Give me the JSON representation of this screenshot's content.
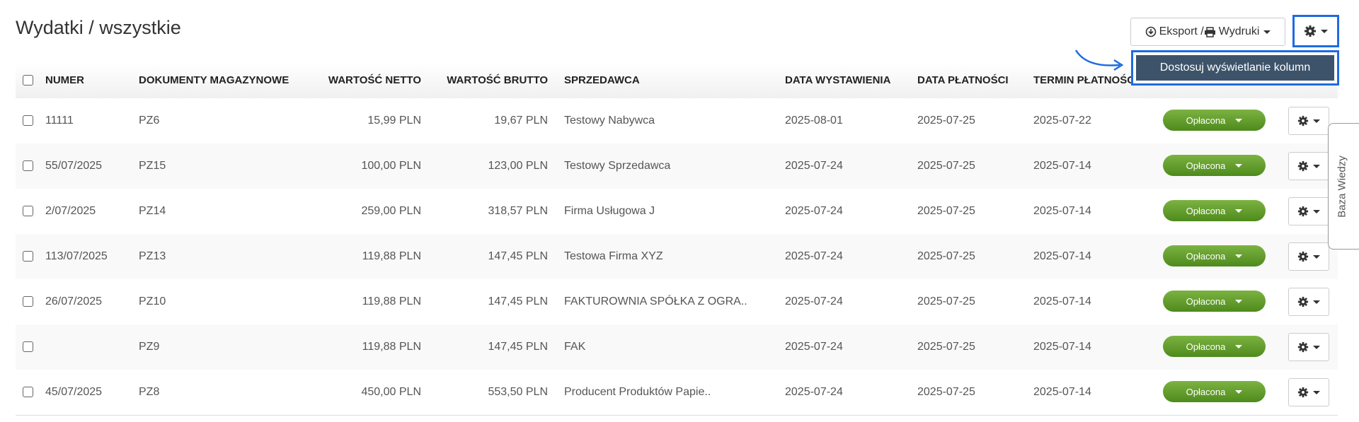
{
  "header": {
    "title": "Wydatki / wszystkie",
    "export_button": "Eksport / ",
    "print_label": "Wydruki",
    "menu_item": "Dostosuj wyświetlanie kolumn",
    "side_tab": "Baza Wiedzy"
  },
  "table": {
    "columns": [
      "NUMER",
      "DOKUMENTY MAGAZYNOWE",
      "WARTOŚĆ NETTO",
      "WARTOŚĆ BRUTTO",
      "SPRZEDAWCA",
      "DATA WYSTAWIENIA",
      "DATA PŁATNOŚCI",
      "TERMIN PŁATNOŚCI"
    ],
    "rows": [
      [
        "11111",
        "PZ6",
        "15,99 PLN",
        "19,67 PLN",
        "Testowy Nabywca",
        "2025-08-01",
        "2025-07-25",
        "2025-07-22",
        "Opłacona"
      ],
      [
        "55/07/2025",
        "PZ15",
        "100,00 PLN",
        "123,00 PLN",
        "Testowy Sprzedawca",
        "2025-07-24",
        "2025-07-25",
        "2025-07-14",
        "Opłacona"
      ],
      [
        "2/07/2025",
        "PZ14",
        "259,00 PLN",
        "318,57 PLN",
        "Firma Usługowa J",
        "2025-07-24",
        "2025-07-25",
        "2025-07-14",
        "Opłacona"
      ],
      [
        "113/07/2025",
        "PZ13",
        "119,88 PLN",
        "147,45 PLN",
        "Testowa Firma XYZ",
        "2025-07-24",
        "2025-07-25",
        "2025-07-14",
        "Opłacona"
      ],
      [
        "26/07/2025",
        "PZ10",
        "119,88 PLN",
        "147,45 PLN",
        "FAKTUROWNIA SPÓŁKA Z OGRA..",
        "2025-07-24",
        "2025-07-25",
        "2025-07-14",
        "Opłacona"
      ],
      [
        null,
        "PZ9",
        "119,88 PLN",
        "147,45 PLN",
        "FAK",
        "2025-07-24",
        "2025-07-25",
        "2025-07-14",
        "Opłacona"
      ],
      [
        "45/07/2025",
        "PZ8",
        "450,00 PLN",
        "553,50 PLN",
        "Producent Produktów Papie..",
        "2025-07-24",
        "2025-07-25",
        "2025-07-14",
        "Opłacona"
      ]
    ]
  }
}
